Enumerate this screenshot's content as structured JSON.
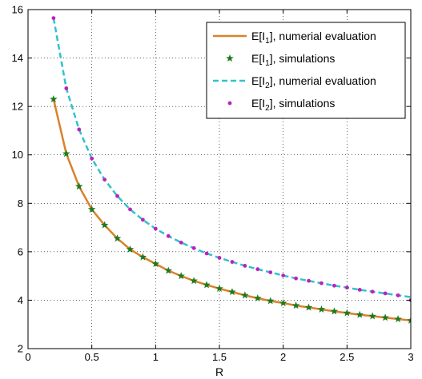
{
  "chart_data": {
    "type": "line",
    "xlabel": "R",
    "ylabel": "",
    "xlim": [
      0,
      3
    ],
    "ylim": [
      2,
      16
    ],
    "grid": true,
    "legend_position": "top-right",
    "xticks": [
      "0",
      "0.5",
      "1",
      "1.5",
      "2",
      "2.5",
      "3"
    ],
    "yticks": [
      "2",
      "4",
      "6",
      "8",
      "10",
      "12",
      "14",
      "16"
    ],
    "series": [
      {
        "name_main": "E[I",
        "name_sub": "1",
        "name_rest": "], numerial evaluation",
        "kind": "line",
        "dash": false,
        "color": "#d9822b",
        "x": [
          0.2,
          0.3,
          0.4,
          0.5,
          0.6,
          0.7,
          0.8,
          0.9,
          1.0,
          1.1,
          1.2,
          1.3,
          1.4,
          1.5,
          1.6,
          1.7,
          1.8,
          1.9,
          2.0,
          2.1,
          2.2,
          2.3,
          2.4,
          2.5,
          2.6,
          2.7,
          2.8,
          2.9,
          3.0
        ],
        "y": [
          12.3,
          10.05,
          8.7,
          7.75,
          7.1,
          6.55,
          6.1,
          5.78,
          5.5,
          5.22,
          5.0,
          4.8,
          4.63,
          4.48,
          4.34,
          4.2,
          4.08,
          3.97,
          3.88,
          3.78,
          3.7,
          3.62,
          3.54,
          3.47,
          3.4,
          3.34,
          3.28,
          3.22,
          3.16
        ]
      },
      {
        "name_main": "E[I",
        "name_sub": "1",
        "name_rest": "], simulations",
        "kind": "marker-star",
        "color": "#1e7a1e",
        "x": [
          0.2,
          0.3,
          0.4,
          0.5,
          0.6,
          0.7,
          0.8,
          0.9,
          1.0,
          1.1,
          1.2,
          1.3,
          1.4,
          1.5,
          1.6,
          1.7,
          1.8,
          1.9,
          2.0,
          2.1,
          2.2,
          2.3,
          2.4,
          2.5,
          2.6,
          2.7,
          2.8,
          2.9,
          3.0
        ],
        "y": [
          12.3,
          10.05,
          8.7,
          7.75,
          7.1,
          6.55,
          6.1,
          5.78,
          5.5,
          5.22,
          5.0,
          4.8,
          4.63,
          4.48,
          4.34,
          4.2,
          4.08,
          3.97,
          3.88,
          3.78,
          3.7,
          3.62,
          3.54,
          3.47,
          3.4,
          3.34,
          3.28,
          3.22,
          3.16
        ]
      },
      {
        "name_main": "E[I",
        "name_sub": "2",
        "name_rest": "], numerial evaluation",
        "kind": "line",
        "dash": true,
        "color": "#33c1cc",
        "x": [
          0.2,
          0.3,
          0.4,
          0.5,
          0.6,
          0.7,
          0.8,
          0.9,
          1.0,
          1.1,
          1.2,
          1.3,
          1.4,
          1.5,
          1.6,
          1.7,
          1.8,
          1.9,
          2.0,
          2.1,
          2.2,
          2.3,
          2.4,
          2.5,
          2.6,
          2.7,
          2.8,
          2.9,
          3.0
        ],
        "y": [
          15.65,
          12.75,
          11.05,
          9.85,
          8.98,
          8.3,
          7.75,
          7.32,
          6.95,
          6.65,
          6.38,
          6.15,
          5.93,
          5.75,
          5.58,
          5.42,
          5.28,
          5.15,
          5.02,
          4.9,
          4.8,
          4.7,
          4.6,
          4.52,
          4.43,
          4.35,
          4.28,
          4.2,
          4.13
        ]
      },
      {
        "name_main": "E[I",
        "name_sub": "2",
        "name_rest": "], simulations",
        "kind": "marker-dot",
        "color": "#bb22bb",
        "x": [
          0.2,
          0.3,
          0.4,
          0.5,
          0.6,
          0.7,
          0.8,
          0.9,
          1.0,
          1.1,
          1.2,
          1.3,
          1.4,
          1.5,
          1.6,
          1.7,
          1.8,
          1.9,
          2.0,
          2.1,
          2.2,
          2.3,
          2.4,
          2.5,
          2.6,
          2.7,
          2.8,
          2.9,
          3.0
        ],
        "y": [
          15.65,
          12.75,
          11.05,
          9.85,
          8.98,
          8.3,
          7.75,
          7.32,
          6.95,
          6.65,
          6.38,
          6.15,
          5.93,
          5.75,
          5.58,
          5.42,
          5.28,
          5.15,
          5.02,
          4.9,
          4.8,
          4.7,
          4.6,
          4.52,
          4.43,
          4.35,
          4.28,
          4.2,
          4.0
        ]
      }
    ]
  }
}
